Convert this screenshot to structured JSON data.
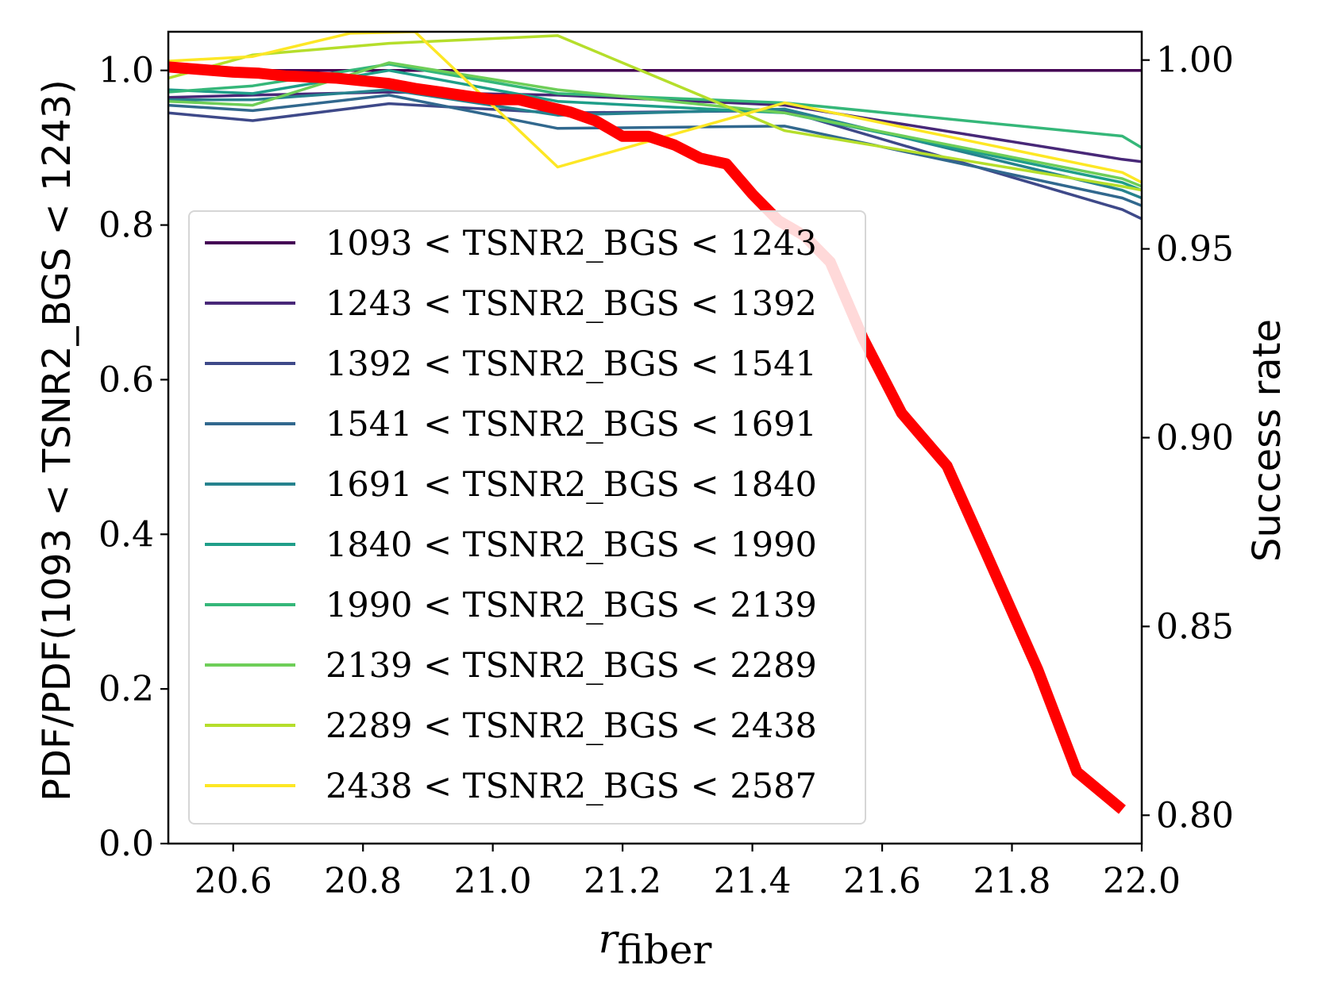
{
  "chart_data": {
    "type": "line",
    "xlabel_var": "r",
    "xlabel_sub": "fiber",
    "ylabel_left": "PDF/PDF(1093 < TSNR2_BGS < 1243)",
    "ylabel_right": "Success rate",
    "xlim": [
      20.5,
      22.0
    ],
    "ylim_left": [
      0.0,
      1.05
    ],
    "ylim_right": [
      0.7925,
      1.0075
    ],
    "x_ticks": [
      "20.6",
      "20.8",
      "21.0",
      "21.2",
      "21.4",
      "21.6",
      "21.8",
      "22.0"
    ],
    "x_tick_values": [
      20.6,
      20.8,
      21.0,
      21.2,
      21.4,
      21.6,
      21.8,
      22.0
    ],
    "y_left_ticks": [
      "0.0",
      "0.2",
      "0.4",
      "0.6",
      "0.8",
      "1.0"
    ],
    "y_left_tick_values": [
      0.0,
      0.2,
      0.4,
      0.6,
      0.8,
      1.0
    ],
    "y_right_ticks": [
      "0.80",
      "0.85",
      "0.90",
      "0.95",
      "1.00"
    ],
    "y_right_tick_values": [
      0.8,
      0.85,
      0.9,
      0.95,
      1.0
    ],
    "legend_position": "center-left",
    "series": [
      {
        "name": "1093 < TSNR2_BGS < 1243",
        "color": "#440154",
        "x": [
          20.5,
          21.97,
          22.0
        ],
        "y": [
          1.0,
          1.0,
          1.0
        ]
      },
      {
        "name": "1243 < TSNR2_BGS < 1392",
        "color": "#482878",
        "x": [
          20.5,
          20.63,
          20.84,
          21.1,
          21.45,
          21.97,
          22.0
        ],
        "y": [
          0.965,
          0.968,
          0.972,
          0.968,
          0.955,
          0.885,
          0.882
        ]
      },
      {
        "name": "1392 < TSNR2_BGS < 1541",
        "color": "#3e4989",
        "x": [
          20.5,
          20.63,
          20.84,
          21.1,
          21.45,
          21.97,
          22.0
        ],
        "y": [
          0.945,
          0.935,
          0.957,
          0.945,
          0.948,
          0.82,
          0.808
        ]
      },
      {
        "name": "1541 < TSNR2_BGS < 1691",
        "color": "#31688e",
        "x": [
          20.5,
          20.63,
          20.84,
          21.1,
          21.45,
          21.97,
          22.0
        ],
        "y": [
          0.955,
          0.948,
          0.968,
          0.925,
          0.928,
          0.835,
          0.825
        ]
      },
      {
        "name": "1691 < TSNR2_BGS < 1840",
        "color": "#26828e",
        "x": [
          20.5,
          20.63,
          20.84,
          21.1,
          21.45,
          21.97,
          22.0
        ],
        "y": [
          0.962,
          0.962,
          0.975,
          0.942,
          0.95,
          0.845,
          0.835
        ]
      },
      {
        "name": "1840 < TSNR2_BGS < 1990",
        "color": "#1f9e89",
        "x": [
          20.5,
          20.63,
          20.84,
          21.1,
          21.45,
          21.97,
          22.0
        ],
        "y": [
          0.975,
          0.97,
          1.0,
          0.96,
          0.945,
          0.855,
          0.845
        ]
      },
      {
        "name": "1990 < TSNR2_BGS < 2139",
        "color": "#35b779",
        "x": [
          20.5,
          20.63,
          20.84,
          21.1,
          21.45,
          21.97,
          22.0
        ],
        "y": [
          0.972,
          0.98,
          1.008,
          0.97,
          0.958,
          0.915,
          0.9
        ]
      },
      {
        "name": "2139 < TSNR2_BGS < 2289",
        "color": "#6ece58",
        "x": [
          20.5,
          20.63,
          20.84,
          21.1,
          21.45,
          21.97,
          22.0
        ],
        "y": [
          0.96,
          0.955,
          1.01,
          0.975,
          0.945,
          0.86,
          0.85
        ]
      },
      {
        "name": "2289 < TSNR2_BGS < 2438",
        "color": "#b5de2b",
        "x": [
          20.5,
          20.63,
          20.84,
          21.1,
          21.45,
          21.97,
          22.0
        ],
        "y": [
          0.99,
          1.02,
          1.035,
          1.045,
          0.922,
          0.85,
          0.845
        ]
      },
      {
        "name": "2438 < TSNR2_BGS < 2587",
        "color": "#fde725",
        "x": [
          20.5,
          20.63,
          20.78,
          20.88,
          21.1,
          21.45,
          21.97,
          22.0
        ],
        "y": [
          1.012,
          1.018,
          1.048,
          1.05,
          0.875,
          0.958,
          0.868,
          0.855
        ]
      }
    ],
    "success_rate": {
      "name": "Success rate",
      "color": "#ff0000",
      "x": [
        20.5,
        20.55,
        20.6,
        20.64,
        20.68,
        20.72,
        20.76,
        20.8,
        20.84,
        20.88,
        20.92,
        20.96,
        21.0,
        21.04,
        21.08,
        21.12,
        21.16,
        21.2,
        21.24,
        21.28,
        21.32,
        21.36,
        21.4,
        21.44,
        21.48,
        21.52,
        21.57,
        21.63,
        21.7,
        21.76,
        21.84,
        21.9,
        21.97
      ],
      "y": [
        0.9982,
        0.9975,
        0.9968,
        0.9965,
        0.9958,
        0.9955,
        0.9952,
        0.9945,
        0.9938,
        0.9925,
        0.9915,
        0.9905,
        0.9895,
        0.9895,
        0.9878,
        0.9862,
        0.9838,
        0.9798,
        0.9798,
        0.9775,
        0.974,
        0.9725,
        0.9645,
        0.9575,
        0.9535,
        0.9465,
        0.9265,
        0.9065,
        0.8925,
        0.8695,
        0.8385,
        0.8115,
        0.8015
      ]
    }
  }
}
